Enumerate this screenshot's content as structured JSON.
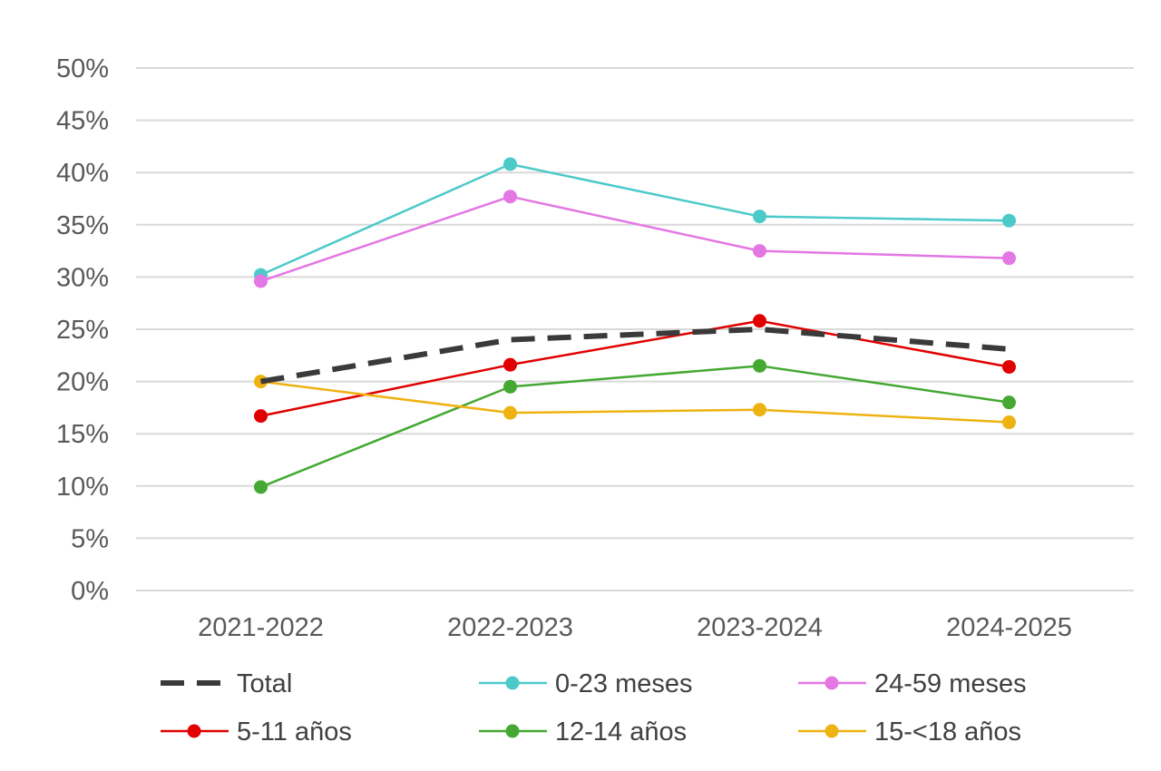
{
  "chart_data": {
    "type": "line",
    "categories": [
      "2021-2022",
      "2022-2023",
      "2023-2024",
      "2024-2025"
    ],
    "y_ticks": [
      "0%",
      "5%",
      "10%",
      "15%",
      "20%",
      "25%",
      "30%",
      "35%",
      "40%",
      "45%",
      "50%"
    ],
    "ylim": [
      0,
      50
    ],
    "grid": true,
    "legend_position": "bottom",
    "series": [
      {
        "name": "Total",
        "color": "#3a3a3a",
        "style": "dashed",
        "markers": false,
        "values": [
          20.0,
          24.0,
          25.0,
          23.1
        ]
      },
      {
        "name": "0-23 meses",
        "color": "#4cc9c9",
        "style": "solid",
        "markers": true,
        "values": [
          30.2,
          40.8,
          35.8,
          35.4
        ]
      },
      {
        "name": "24-59 meses",
        "color": "#e377e3",
        "style": "solid",
        "markers": true,
        "values": [
          29.6,
          37.7,
          32.5,
          31.8
        ]
      },
      {
        "name": "5-11 años",
        "color": "#e00000",
        "style": "solid",
        "markers": true,
        "values": [
          16.7,
          21.6,
          25.8,
          21.4
        ]
      },
      {
        "name": "12-14 años",
        "color": "#44a832",
        "style": "solid",
        "markers": true,
        "values": [
          9.9,
          19.5,
          21.5,
          18.0
        ]
      },
      {
        "name": "15-<18 años",
        "color": "#eeb211",
        "style": "solid",
        "markers": true,
        "values": [
          20.0,
          17.0,
          17.3,
          16.1
        ]
      }
    ]
  }
}
